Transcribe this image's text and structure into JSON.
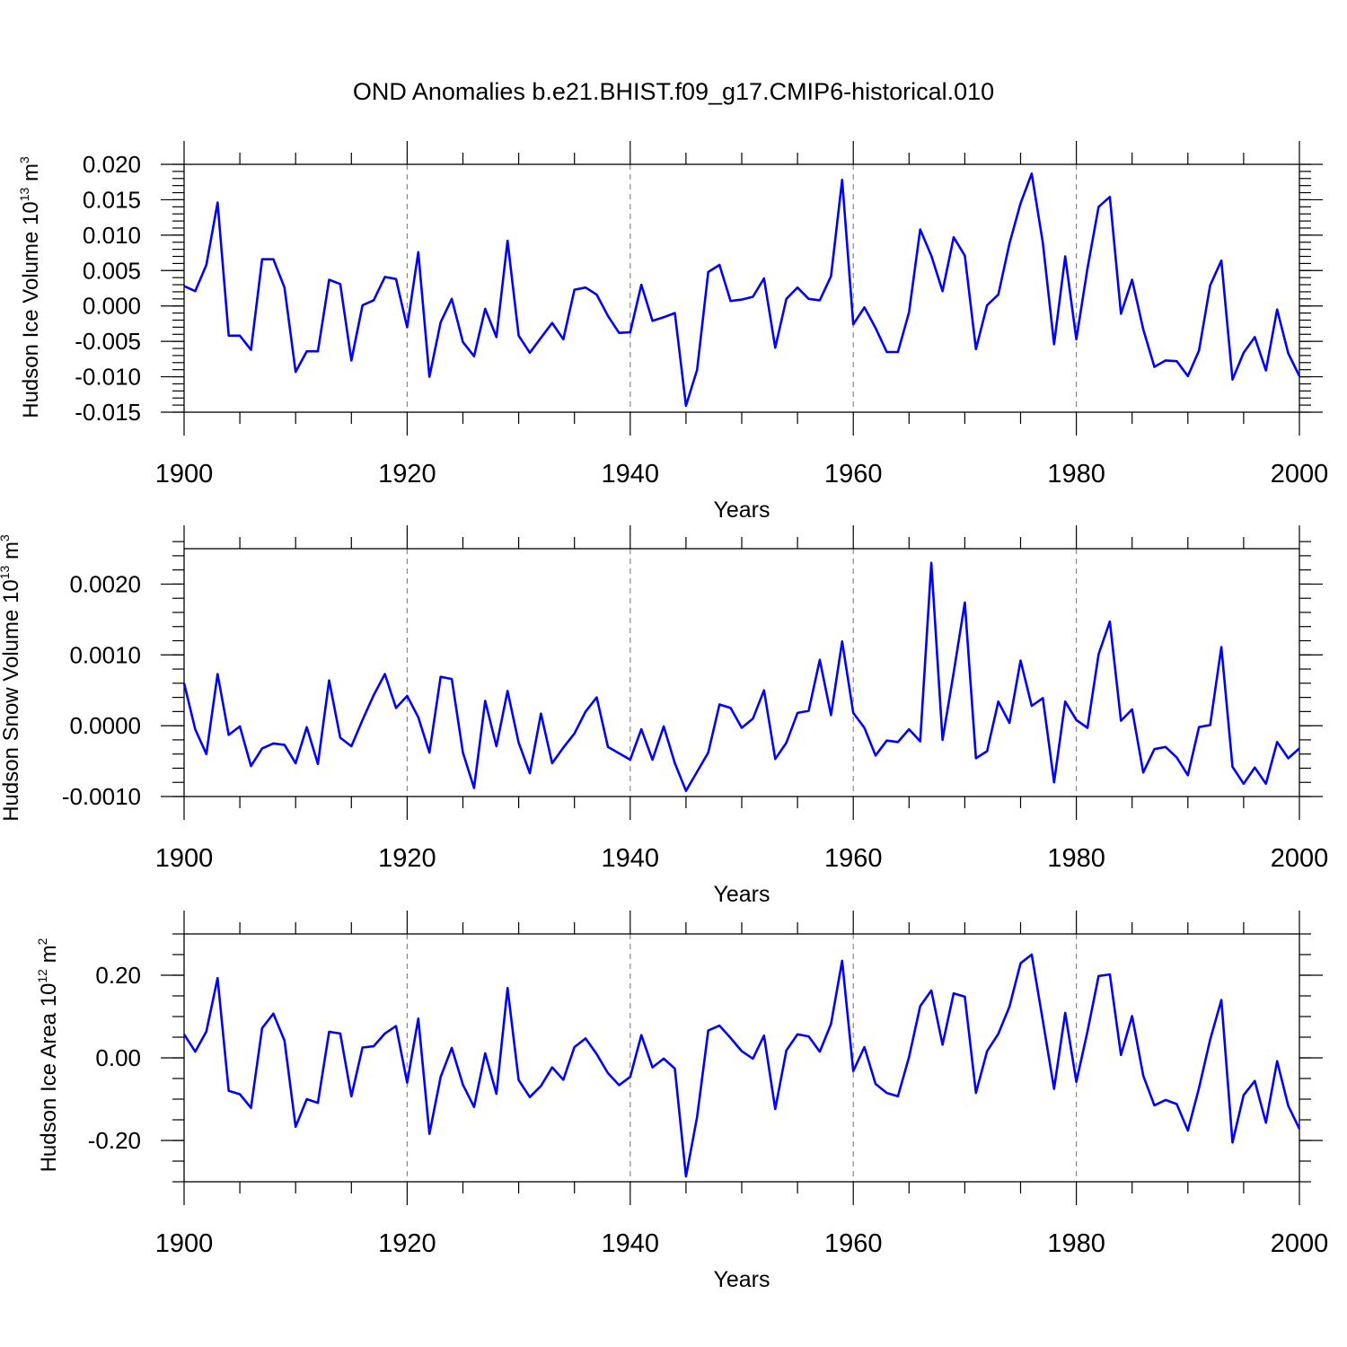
{
  "colors": {
    "series": "#0000ff",
    "axes": "#000000",
    "grid": "#888888"
  },
  "chart_data": {
    "type": "line",
    "title": "OND Anomalies b.e21.BHIST.f09_g17.CMIP6-historical.010",
    "x": [
      1900,
      1901,
      1902,
      1903,
      1904,
      1905,
      1906,
      1907,
      1908,
      1909,
      1910,
      1911,
      1912,
      1913,
      1914,
      1915,
      1916,
      1917,
      1918,
      1919,
      1920,
      1921,
      1922,
      1923,
      1924,
      1925,
      1926,
      1927,
      1928,
      1929,
      1930,
      1931,
      1932,
      1933,
      1934,
      1935,
      1936,
      1937,
      1938,
      1939,
      1940,
      1941,
      1942,
      1943,
      1944,
      1945,
      1946,
      1947,
      1948,
      1949,
      1950,
      1951,
      1952,
      1953,
      1954,
      1955,
      1956,
      1957,
      1958,
      1959,
      1960,
      1961,
      1962,
      1963,
      1964,
      1965,
      1966,
      1967,
      1968,
      1969,
      1970,
      1971,
      1972,
      1973,
      1974,
      1975,
      1976,
      1977,
      1978,
      1979,
      1980,
      1981,
      1982,
      1983,
      1984,
      1985,
      1986,
      1987,
      1988,
      1989,
      1990,
      1991,
      1992,
      1993,
      1994,
      1995,
      1996,
      1997,
      1998,
      1999,
      2000
    ],
    "panels": [
      {
        "ylabel": "Hudson Ice Volume 10",
        "ylabel_sup": "13",
        "ylabel_unit": " m",
        "ylabel_unit_sup": "3",
        "xlabel": "Years",
        "xlim": [
          1900,
          2000
        ],
        "ylim": [
          -0.015,
          0.02
        ],
        "major_y": [
          -0.015,
          -0.01,
          -0.005,
          0.0,
          0.005,
          0.01,
          0.015,
          0.02
        ],
        "ytick_labels": [
          "-0.015",
          "-0.010",
          "-0.005",
          "0.000",
          "0.005",
          "0.010",
          "0.015",
          "0.020"
        ],
        "minor_y_step": 0.001,
        "xticks": [
          1900,
          1920,
          1940,
          1960,
          1980,
          2000
        ],
        "xtick_labels": [
          "1900",
          "1920",
          "1940",
          "1960",
          "1980",
          "2000"
        ],
        "values": [
          0.0028,
          0.0021,
          0.0058,
          0.0146,
          -0.0042,
          -0.0042,
          -0.0062,
          0.0066,
          0.0066,
          0.0026,
          -0.0093,
          -0.0064,
          -0.0064,
          0.0037,
          0.0031,
          -0.0077,
          0.0001,
          0.0008,
          0.0041,
          0.0038,
          -0.003,
          0.0076,
          -0.01,
          -0.0023,
          0.001,
          -0.0051,
          -0.0071,
          -0.0004,
          -0.0044,
          0.0092,
          -0.0042,
          -0.0066,
          -0.0045,
          -0.0024,
          -0.0047,
          0.0023,
          0.0026,
          0.0016,
          -0.0014,
          -0.0038,
          -0.0037,
          0.003,
          -0.0021,
          -0.0016,
          -0.001,
          -0.0141,
          -0.009,
          0.0048,
          0.0058,
          0.0007,
          0.0009,
          0.0013,
          0.0039,
          -0.0059,
          0.001,
          0.0026,
          0.001,
          0.0008,
          0.0042,
          0.0178,
          -0.0026,
          -0.0002,
          -0.0031,
          -0.0065,
          -0.0065,
          -0.0009,
          0.0108,
          0.0071,
          0.0021,
          0.0097,
          0.0071,
          -0.0061,
          0.0001,
          0.0016,
          0.0088,
          0.0145,
          0.0187,
          0.0089,
          -0.0054,
          0.007,
          -0.0047,
          0.0053,
          0.014,
          0.0154,
          -0.0011,
          0.0037,
          -0.0033,
          -0.0086,
          -0.0077,
          -0.0078,
          -0.0099,
          -0.0063,
          0.0029,
          0.0064,
          -0.0104,
          -0.0066,
          -0.0044,
          -0.0091,
          -0.0005,
          -0.0067,
          -0.0099
        ]
      },
      {
        "ylabel": "Hudson Snow Volume 10",
        "ylabel_sup": "13",
        "ylabel_unit": " m",
        "ylabel_unit_sup": "3",
        "xlabel": "Years",
        "xlim": [
          1900,
          2000
        ],
        "ylim": [
          -0.001,
          0.0025
        ],
        "major_y": [
          -0.001,
          0.0,
          0.001,
          0.002
        ],
        "ytick_labels": [
          "-0.0010",
          "0.0000",
          "0.0010",
          "0.0020"
        ],
        "minor_y_step": 0.0002,
        "xticks": [
          1900,
          1920,
          1940,
          1960,
          1980,
          2000
        ],
        "xtick_labels": [
          "1900",
          "1920",
          "1940",
          "1960",
          "1980",
          "2000"
        ],
        "values": [
          0.0006,
          -5e-05,
          -0.0004,
          0.00073,
          -0.00013,
          -1e-05,
          -0.00057,
          -0.00032,
          -0.00025,
          -0.00027,
          -0.00053,
          -2e-05,
          -0.00054,
          0.00064,
          -0.00017,
          -0.00029,
          8e-05,
          0.00043,
          0.00073,
          0.00025,
          0.00042,
          0.00012,
          -0.00038,
          0.00069,
          0.00066,
          -0.00038,
          -0.00088,
          0.00035,
          -0.00029,
          0.00049,
          -0.00024,
          -0.00067,
          0.00017,
          -0.00053,
          -0.00031,
          -0.00011,
          0.0002,
          0.0004,
          -0.0003,
          -0.00039,
          -0.00048,
          -5e-05,
          -0.00048,
          -1e-05,
          -0.00053,
          -0.00092,
          -0.00065,
          -0.00038,
          0.0003,
          0.00025,
          -3e-05,
          0.0001,
          0.0005,
          -0.00047,
          -0.00024,
          0.00018,
          0.00021,
          0.00093,
          0.00015,
          0.00119,
          0.00018,
          -3e-05,
          -0.00042,
          -0.00021,
          -0.00023,
          -5e-05,
          -0.00022,
          0.0023,
          -0.0002,
          0.00075,
          0.00174,
          -0.00046,
          -0.00036,
          0.00034,
          4e-05,
          0.00092,
          0.00028,
          0.00039,
          -0.0008,
          0.00034,
          8e-05,
          -3e-05,
          0.00101,
          0.00147,
          7e-05,
          0.00023,
          -0.00066,
          -0.00033,
          -0.0003,
          -0.00045,
          -0.0007,
          -2e-05,
          1e-05,
          0.00111,
          -0.00058,
          -0.00082,
          -0.00059,
          -0.00082,
          -0.00023,
          -0.00046,
          -0.00032
        ]
      },
      {
        "ylabel": "Hudson Ice Area 10",
        "ylabel_sup": "12",
        "ylabel_unit": " m",
        "ylabel_unit_sup": "2",
        "xlabel": "Years",
        "xlim": [
          1900,
          2000
        ],
        "ylim": [
          -0.3,
          0.3
        ],
        "major_y": [
          -0.2,
          0.0,
          0.2
        ],
        "ytick_labels": [
          "-0.20",
          "0.00",
          "0.20"
        ],
        "minor_y_step": 0.05,
        "xticks": [
          1900,
          1920,
          1940,
          1960,
          1980,
          2000
        ],
        "xtick_labels": [
          "1900",
          "1920",
          "1940",
          "1960",
          "1980",
          "2000"
        ],
        "values": [
          0.057,
          0.015,
          0.064,
          0.193,
          -0.08,
          -0.088,
          -0.121,
          0.072,
          0.107,
          0.042,
          -0.167,
          -0.1,
          -0.109,
          0.063,
          0.059,
          -0.093,
          0.025,
          0.028,
          0.059,
          0.077,
          -0.06,
          0.095,
          -0.184,
          -0.046,
          0.024,
          -0.065,
          -0.119,
          0.011,
          -0.087,
          0.169,
          -0.054,
          -0.095,
          -0.068,
          -0.023,
          -0.053,
          0.026,
          0.047,
          0.009,
          -0.037,
          -0.066,
          -0.046,
          0.055,
          -0.023,
          -0.002,
          -0.026,
          -0.287,
          -0.143,
          0.066,
          0.078,
          0.048,
          0.016,
          -0.002,
          0.054,
          -0.124,
          0.018,
          0.057,
          0.052,
          0.015,
          0.082,
          0.235,
          -0.032,
          0.026,
          -0.063,
          -0.085,
          -0.093,
          0.002,
          0.125,
          0.163,
          0.032,
          0.156,
          0.148,
          -0.085,
          0.016,
          0.058,
          0.124,
          0.229,
          0.25,
          0.09,
          -0.075,
          0.109,
          -0.058,
          0.064,
          0.198,
          0.202,
          0.007,
          0.101,
          -0.043,
          -0.115,
          -0.102,
          -0.112,
          -0.176,
          -0.073,
          0.044,
          0.14,
          -0.205,
          -0.09,
          -0.056,
          -0.157,
          -0.008,
          -0.116,
          -0.172
        ]
      }
    ]
  }
}
